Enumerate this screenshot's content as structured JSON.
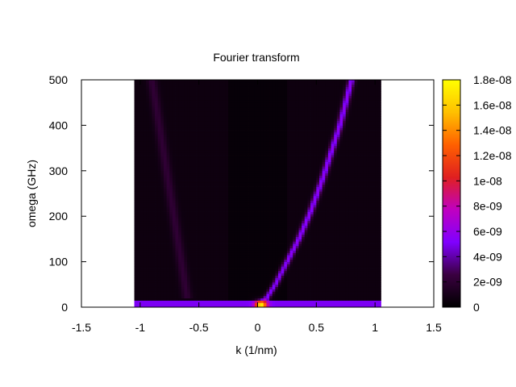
{
  "chart_data": {
    "type": "heatmap",
    "title": "Fourier transform",
    "xlabel": "k (1/nm)",
    "ylabel": "omega (GHz)",
    "xlim": [
      -1.5,
      1.5
    ],
    "ylim": [
      0,
      500
    ],
    "x_ticks": [
      "-1.5",
      "-1",
      "-0.5",
      "0",
      "0.5",
      "1",
      "1.5"
    ],
    "x_tick_values": [
      -1.5,
      -1,
      -0.5,
      0,
      0.5,
      1,
      1.5
    ],
    "y_ticks": [
      "0",
      "100",
      "200",
      "300",
      "400",
      "500"
    ],
    "y_tick_values": [
      0,
      100,
      200,
      300,
      400,
      500
    ],
    "data_extent": {
      "k": [
        -1.05,
        1.05
      ],
      "omega": [
        0,
        500
      ]
    },
    "colorbar": {
      "range": [
        0,
        1.8e-08
      ],
      "tick_labels": [
        "0",
        "2e-09",
        "4e-09",
        "6e-09",
        "8e-09",
        "1e-08",
        "1.2e-08",
        "1.4e-08",
        "1.6e-08",
        "1.8e-08"
      ],
      "tick_values": [
        0,
        2e-09,
        4e-09,
        6e-09,
        8e-09,
        1e-08,
        1.2e-08,
        1.4e-08,
        1.6e-08,
        1.8e-08
      ],
      "palette": [
        "#000000",
        "#3a0040",
        "#8000ff",
        "#c000c0",
        "#e02020",
        "#ff6000",
        "#ffc000",
        "#ffff00"
      ]
    },
    "features": {
      "dispersion_branch": {
        "k": [
          0.05,
          0.1,
          0.15,
          0.2,
          0.25,
          0.3,
          0.35,
          0.4,
          0.45,
          0.5,
          0.55,
          0.6,
          0.65,
          0.7,
          0.75,
          0.8
        ],
        "omega": [
          10,
          30,
          50,
          75,
          100,
          125,
          150,
          180,
          210,
          245,
          280,
          320,
          360,
          400,
          450,
          500
        ],
        "value": 5e-09
      },
      "faint_branch_left": {
        "k": [
          -0.6,
          -0.65,
          -0.7,
          -0.75,
          -0.8,
          -0.85,
          -0.9
        ],
        "omega": [
          20,
          100,
          180,
          260,
          340,
          420,
          500
        ],
        "value": 1.5e-09
      },
      "low_frequency_band": {
        "omega_max": 15,
        "value": 5e-09
      },
      "central_peak": {
        "k": 0.03,
        "omega": 5,
        "value": 1.3e-08
      },
      "background_value": 6e-10
    }
  }
}
